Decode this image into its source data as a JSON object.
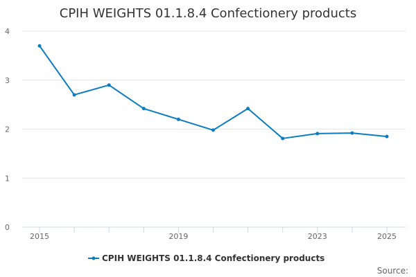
{
  "chart_data": {
    "type": "line",
    "title": "CPIH WEIGHTS 01.1.8.4 Confectionery products",
    "xlabel": "",
    "ylabel": "",
    "x": [
      2015,
      2016,
      2017,
      2018,
      2019,
      2020,
      2021,
      2022,
      2023,
      2024,
      2025
    ],
    "x_tick_labels": [
      "2015",
      "2019",
      "2023",
      "2025"
    ],
    "y_ticks": [
      0,
      1,
      2,
      3,
      4
    ],
    "ylim": [
      0,
      4
    ],
    "xlim": [
      2015,
      2025
    ],
    "grid": true,
    "legend_placement": "bottom",
    "series": [
      {
        "name": "CPIH WEIGHTS 01.1.8.4 Confectionery products",
        "color": "#0a7cc1",
        "values": [
          3.7,
          2.7,
          2.9,
          2.42,
          2.2,
          1.98,
          2.42,
          1.81,
          1.91,
          1.92,
          1.85
        ]
      }
    ],
    "source_label": "Source:"
  }
}
